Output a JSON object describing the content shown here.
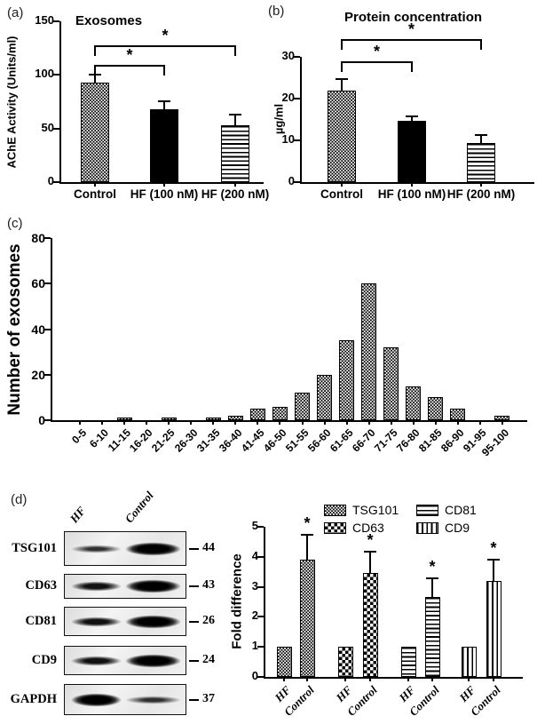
{
  "figure": {
    "panels": {
      "a": {
        "letter": "(a)"
      },
      "b": {
        "letter": "(b)"
      },
      "c": {
        "letter": "(c)"
      },
      "d": {
        "letter": "(d)"
      }
    }
  },
  "chart_data": [
    {
      "id": "a",
      "type": "bar",
      "title": "Exosomes",
      "ylabel": "AChE Activity (Units/ml)",
      "categories": [
        "Control",
        "HF (100 nM)",
        "HF (200 nM)"
      ],
      "values": [
        93,
        68,
        53
      ],
      "errors": [
        8,
        8,
        11
      ],
      "patterns": [
        "dots",
        "solid",
        "hlines"
      ],
      "ylim": [
        0,
        150
      ],
      "yticks": [
        0,
        50,
        100,
        150
      ],
      "grid": "off",
      "significance": [
        {
          "from": 0,
          "to": 1,
          "y": 109,
          "label": "*"
        },
        {
          "from": 0,
          "to": 2,
          "y": 128,
          "label": "*"
        }
      ]
    },
    {
      "id": "b",
      "type": "bar",
      "title": "Protein concentration",
      "ylabel": "µg/ml",
      "categories": [
        "Control",
        "HF (100 nM)",
        "HF (200 nM)"
      ],
      "values": [
        22,
        14.7,
        9.3
      ],
      "errors": [
        3,
        1.3,
        2.2
      ],
      "patterns": [
        "dots",
        "solid",
        "hlines"
      ],
      "ylim": [
        0,
        30
      ],
      "yticks": [
        0,
        10,
        20,
        30
      ],
      "grid": "off",
      "significance": [
        {
          "from": 0,
          "to": 1,
          "y": 29,
          "label": "*"
        },
        {
          "from": 0,
          "to": 2,
          "y": 34.3,
          "label": "*"
        }
      ]
    },
    {
      "id": "c",
      "type": "bar",
      "title": "",
      "ylabel": "Number of exosomes",
      "categories": [
        "0-5",
        "6-10",
        "11-15",
        "16-20",
        "21-25",
        "26-30",
        "31-35",
        "36-40",
        "41-45",
        "46-50",
        "51-55",
        "56-60",
        "61-65",
        "66-70",
        "71-75",
        "76-80",
        "81-85",
        "86-90",
        "91-95",
        "95-100"
      ],
      "values": [
        0,
        0,
        1,
        0,
        1,
        0,
        1,
        2,
        5,
        6,
        12,
        20,
        35,
        60,
        32,
        15,
        10,
        5,
        0,
        2
      ],
      "pattern": "dots",
      "ylim": [
        0,
        80
      ],
      "yticks": [
        0,
        20,
        40,
        60,
        80
      ],
      "grid": "off"
    },
    {
      "id": "d",
      "type": "grouped-bar",
      "title": "",
      "ylabel": "Fold difference",
      "group_categories": [
        "HF",
        "Control"
      ],
      "legend": [
        {
          "label": "TSG101",
          "pattern": "dots"
        },
        {
          "label": "CD63",
          "pattern": "checker"
        },
        {
          "label": "CD81",
          "pattern": "hlines"
        },
        {
          "label": "CD9",
          "pattern": "vlines"
        }
      ],
      "series": [
        {
          "name": "TSG101",
          "pattern": "dots",
          "values": [
            1,
            3.9
          ],
          "errors": [
            0,
            0.85
          ],
          "sig": [
            "",
            "*"
          ]
        },
        {
          "name": "CD63",
          "pattern": "checker",
          "values": [
            1,
            3.45
          ],
          "errors": [
            0,
            0.75
          ],
          "sig": [
            "",
            "*"
          ]
        },
        {
          "name": "CD81",
          "pattern": "hlines",
          "values": [
            1,
            2.65
          ],
          "errors": [
            0,
            0.65
          ],
          "sig": [
            "",
            "*"
          ]
        },
        {
          "name": "CD9",
          "pattern": "vlines",
          "values": [
            1,
            3.2
          ],
          "errors": [
            0,
            0.75
          ],
          "sig": [
            "",
            "*"
          ]
        }
      ],
      "ylim": [
        0,
        5
      ],
      "yticks": [
        0,
        1,
        2,
        3,
        4,
        5
      ],
      "grid": "off",
      "legend_position": "top"
    }
  ],
  "blot": {
    "lanes": [
      "HF",
      "Control"
    ],
    "rows": [
      {
        "label": "TSG101",
        "marker": "44",
        "bands": {
          "hf": "light",
          "control": "dark"
        }
      },
      {
        "label": "CD63",
        "marker": "43",
        "bands": {
          "hf": "medium",
          "control": "dark"
        }
      },
      {
        "label": "CD81",
        "marker": "26",
        "bands": {
          "hf": "medium",
          "control": "dark"
        }
      },
      {
        "label": "CD9",
        "marker": "24",
        "bands": {
          "hf": "medium",
          "control": "dark"
        }
      },
      {
        "label": "GAPDH",
        "marker": "37",
        "bands": {
          "hf": "dark",
          "control": "light"
        }
      }
    ]
  }
}
